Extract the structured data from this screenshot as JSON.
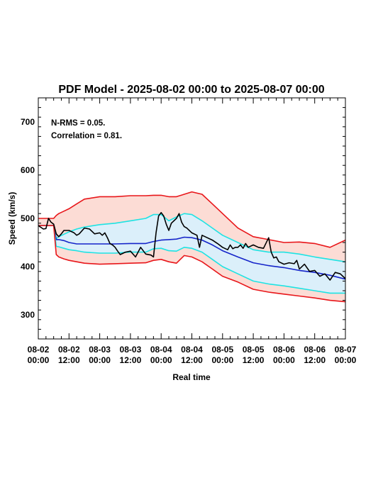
{
  "chart_data": {
    "type": "line",
    "title": "PDF Model - 2025-08-02 00:00 to 2025-08-07 00:00",
    "xlabel": "Real time",
    "ylabel": "Speed (km/s)",
    "xlim_hours": [
      0,
      120
    ],
    "ylim": [
      250,
      750
    ],
    "y_ticks": [
      300,
      400,
      500,
      600,
      700
    ],
    "x_tick_labels": [
      {
        "date": "08-02",
        "time": "00:00"
      },
      {
        "date": "08-02",
        "time": "12:00"
      },
      {
        "date": "08-03",
        "time": "00:00"
      },
      {
        "date": "08-03",
        "time": "12:00"
      },
      {
        "date": "08-04",
        "time": "00:00"
      },
      {
        "date": "08-04",
        "time": "12:00"
      },
      {
        "date": "08-05",
        "time": "00:00"
      },
      {
        "date": "08-05",
        "time": "12:00"
      },
      {
        "date": "08-06",
        "time": "00:00"
      },
      {
        "date": "08-06",
        "time": "12:00"
      },
      {
        "date": "08-07",
        "time": "00:00"
      }
    ],
    "annotations": {
      "nrms": "N-RMS = 0.05.",
      "correlation": "Correlation = 0.81."
    },
    "x_hours": [
      0,
      6,
      7,
      8,
      10,
      12,
      15,
      18,
      24,
      30,
      36,
      42,
      45,
      48,
      51,
      54,
      57,
      60,
      64,
      68,
      72,
      78,
      84,
      90,
      96,
      102,
      108,
      114,
      120
    ],
    "colors": {
      "outer_band_fill": "#fcdcd5",
      "inner_band_fill": "#dbeffa",
      "outer_bound": "#e8161a",
      "inner_bound": "#1ee3e3",
      "median": "#1524c9",
      "observed": "#000000"
    },
    "series": [
      {
        "values": [
          500,
          500,
          506,
          510,
          515,
          520,
          530,
          540,
          545,
          545,
          547,
          547,
          548,
          548,
          545,
          545,
          550,
          555,
          550,
          530,
          510,
          480,
          462,
          456,
          450,
          451,
          448,
          440,
          455
        ]
      },
      {
        "values": [
          485,
          485,
          458,
          462,
          467,
          472,
          478,
          482,
          487,
          490,
          495,
          500,
          508,
          508,
          495,
          503,
          510,
          508,
          495,
          480,
          465,
          450,
          435,
          430,
          430,
          426,
          420,
          415,
          410
        ]
      },
      {
        "values": [
          485,
          485,
          456,
          456,
          454,
          450,
          447,
          447,
          447,
          447,
          448,
          448,
          452,
          455,
          456,
          457,
          461,
          460,
          455,
          445,
          433,
          420,
          408,
          402,
          398,
          392,
          388,
          382,
          374
        ]
      },
      {
        "values": [
          485,
          485,
          442,
          441,
          438,
          435,
          433,
          430,
          428,
          428,
          430,
          430,
          437,
          438,
          433,
          432,
          440,
          438,
          430,
          415,
          400,
          385,
          370,
          364,
          360,
          355,
          350,
          345,
          345
        ]
      },
      {
        "values": [
          485,
          485,
          425,
          420,
          416,
          413,
          410,
          407,
          405,
          406,
          407,
          408,
          413,
          415,
          410,
          407,
          423,
          420,
          410,
          395,
          380,
          368,
          353,
          347,
          343,
          339,
          335,
          330,
          327
        ]
      },
      {
        "x_hours": [
          0,
          2,
          3,
          4,
          5,
          6,
          7,
          8,
          9,
          10,
          12,
          14,
          15,
          16,
          18,
          20,
          22,
          24,
          25,
          26,
          27,
          28,
          29,
          30,
          31,
          32,
          34,
          36,
          38,
          40,
          42,
          44,
          45,
          46,
          47,
          48,
          49,
          50,
          51,
          52,
          54,
          55,
          56,
          57,
          58,
          60,
          62,
          63,
          64,
          66,
          68,
          70,
          72,
          74,
          75,
          76,
          77,
          78,
          79,
          80,
          81,
          82,
          84,
          86,
          88,
          90,
          91,
          92,
          93,
          94,
          96,
          98,
          100,
          101,
          102,
          104,
          106,
          108,
          110,
          112,
          114,
          116,
          118,
          120
        ],
        "values": [
          485,
          478,
          479,
          500,
          492,
          488,
          468,
          462,
          468,
          475,
          475,
          470,
          465,
          468,
          480,
          478,
          468,
          470,
          465,
          470,
          460,
          448,
          445,
          440,
          432,
          425,
          430,
          432,
          420,
          440,
          426,
          424,
          420,
          470,
          505,
          512,
          505,
          488,
          475,
          490,
          500,
          510,
          492,
          483,
          480,
          470,
          465,
          440,
          465,
          460,
          455,
          448,
          440,
          435,
          445,
          437,
          440,
          440,
          445,
          438,
          448,
          440,
          445,
          440,
          438,
          460,
          430,
          418,
          420,
          410,
          405,
          408,
          406,
          413,
          395,
          405,
          390,
          392,
          380,
          385,
          372,
          388,
          385,
          375
        ]
      }
    ]
  }
}
